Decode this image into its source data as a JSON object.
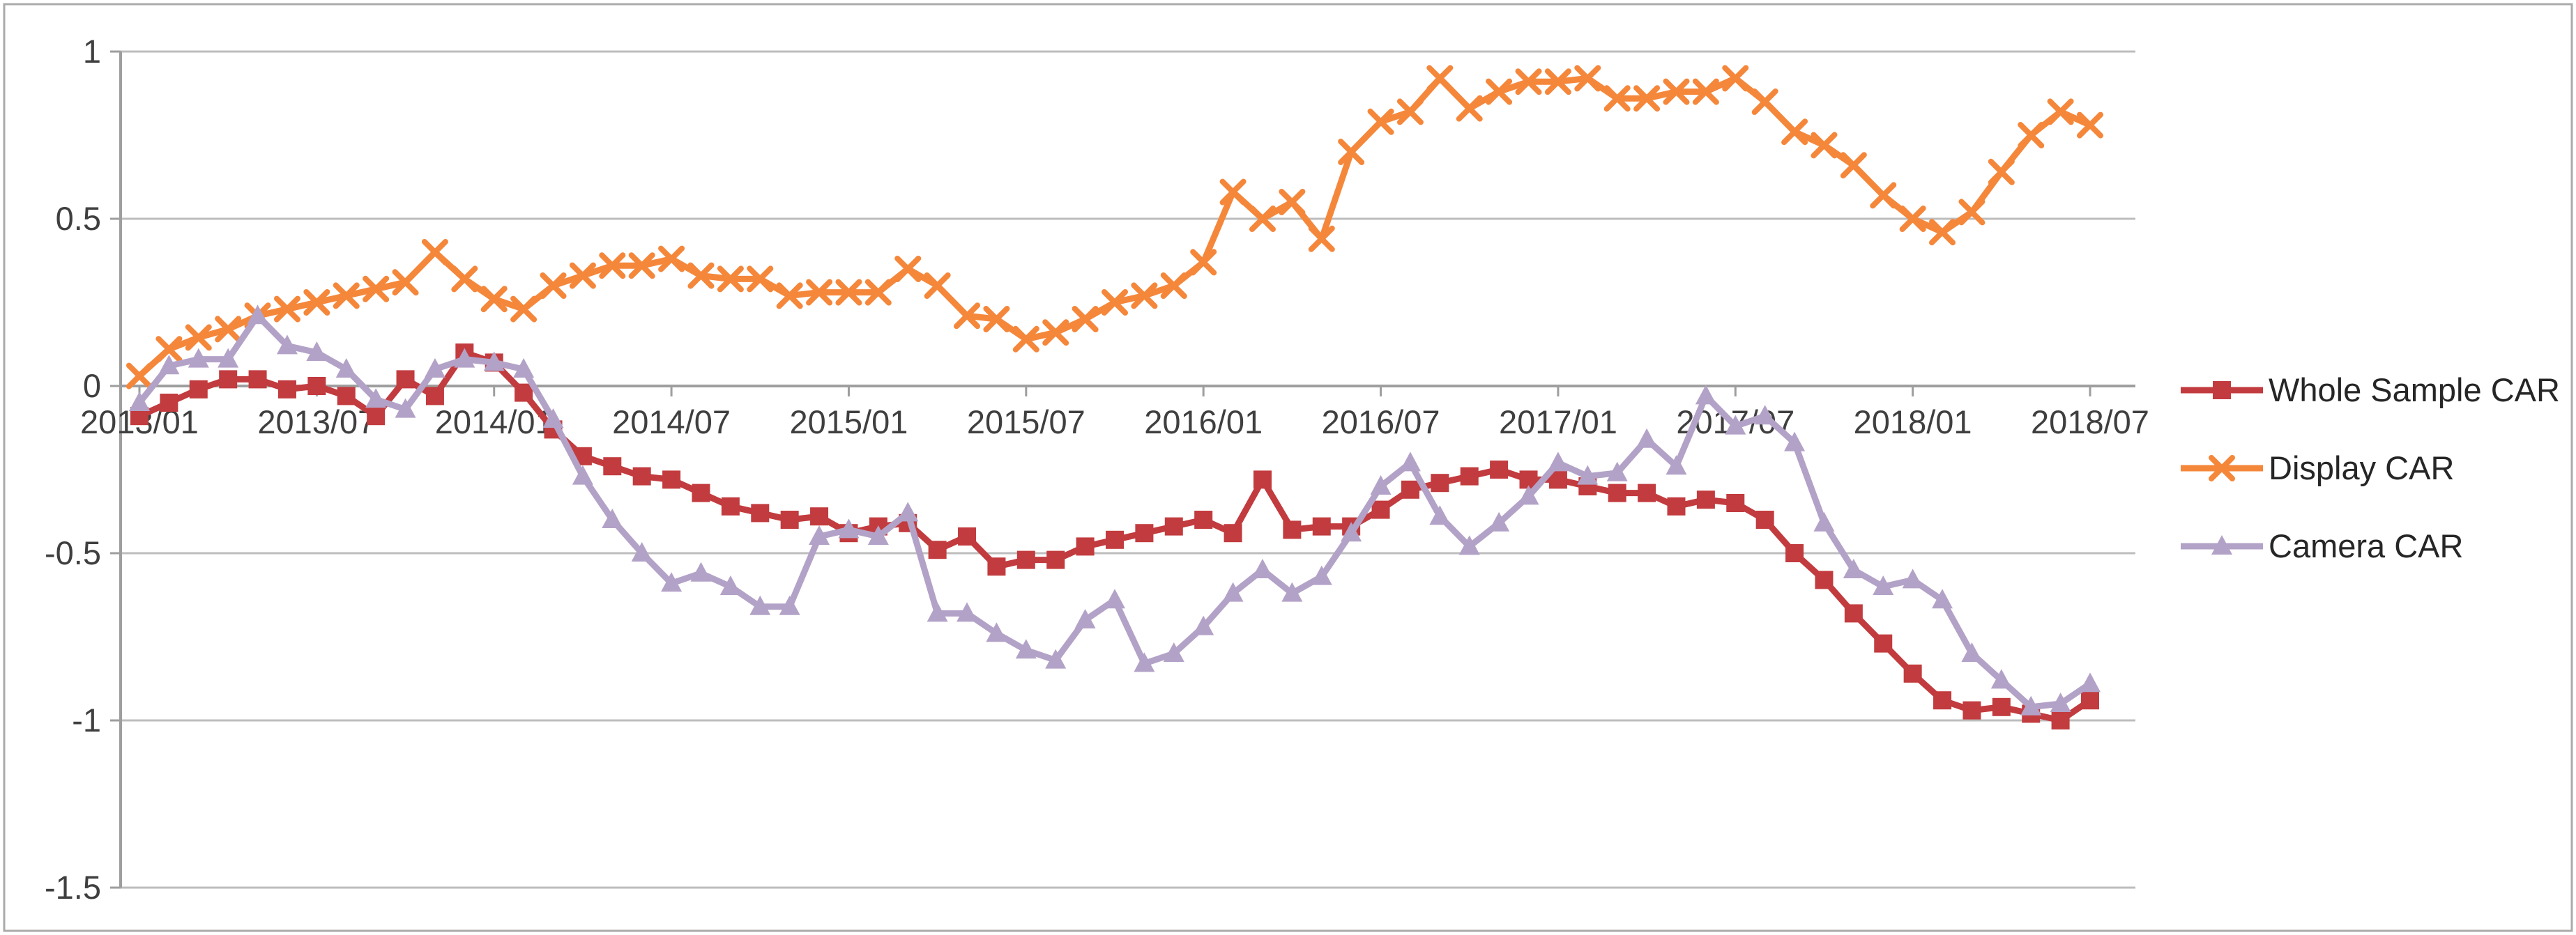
{
  "chart_data": {
    "type": "line",
    "title": "",
    "xlabel": "",
    "ylabel": "",
    "ylim": [
      -1.5,
      1
    ],
    "grid": "horizontal",
    "legend_position": "right",
    "n_points": 67,
    "x_start": "2013/01",
    "x_tick_interval_months": 6,
    "x_tick_labels": [
      "2013/01",
      "2013/07",
      "2014/01",
      "2014/07",
      "2015/01",
      "2015/07",
      "2016/01",
      "2016/07",
      "2017/01",
      "2017/07",
      "2018/01",
      "2018/07"
    ],
    "y_ticks": [
      {
        "label": "1",
        "value": 1
      },
      {
        "label": "0.5",
        "value": 0.5
      },
      {
        "label": "0",
        "value": 0
      },
      {
        "label": "-0.5",
        "value": -0.5
      },
      {
        "label": "-1",
        "value": -1
      },
      {
        "label": "-1.5",
        "value": -1.5
      }
    ],
    "series": [
      {
        "name": "Whole Sample CAR",
        "color": "#c23b3e",
        "marker": "square",
        "values": [
          -0.09,
          -0.05,
          -0.01,
          0.02,
          0.02,
          -0.01,
          0.0,
          -0.03,
          -0.09,
          0.02,
          -0.03,
          0.1,
          0.07,
          -0.02,
          -0.13,
          -0.21,
          -0.24,
          -0.27,
          -0.28,
          -0.32,
          -0.36,
          -0.38,
          -0.4,
          -0.39,
          -0.44,
          -0.42,
          -0.41,
          -0.49,
          -0.45,
          -0.54,
          -0.52,
          -0.52,
          -0.48,
          -0.46,
          -0.44,
          -0.42,
          -0.4,
          -0.44,
          -0.28,
          -0.43,
          -0.42,
          -0.42,
          -0.37,
          -0.31,
          -0.29,
          -0.27,
          -0.25,
          -0.28,
          -0.28,
          -0.3,
          -0.32,
          -0.32,
          -0.36,
          -0.34,
          -0.35,
          -0.4,
          -0.5,
          -0.58,
          -0.68,
          -0.77,
          -0.86,
          -0.94,
          -0.97,
          -0.96,
          -0.98,
          -1.0,
          -0.94
        ]
      },
      {
        "name": "Display CAR",
        "color": "#f5873b",
        "marker": "x",
        "values": [
          0.03,
          0.11,
          0.145,
          0.17,
          0.21,
          0.23,
          0.25,
          0.27,
          0.29,
          0.31,
          0.4,
          0.32,
          0.26,
          0.23,
          0.3,
          0.33,
          0.36,
          0.36,
          0.38,
          0.33,
          0.32,
          0.32,
          0.27,
          0.28,
          0.28,
          0.28,
          0.35,
          0.3,
          0.21,
          0.2,
          0.14,
          0.16,
          0.2,
          0.25,
          0.27,
          0.3,
          0.37,
          0.58,
          0.5,
          0.55,
          0.44,
          0.7,
          0.79,
          0.82,
          0.92,
          0.83,
          0.88,
          0.91,
          0.91,
          0.92,
          0.86,
          0.86,
          0.88,
          0.88,
          0.92,
          0.85,
          0.76,
          0.72,
          0.66,
          0.57,
          0.5,
          0.46,
          0.52,
          0.64,
          0.75,
          0.82,
          0.78
        ]
      },
      {
        "name": "Camera CAR",
        "color": "#b3a2c7",
        "marker": "triangle-up",
        "values": [
          -0.05,
          0.06,
          0.08,
          0.08,
          0.21,
          0.12,
          0.1,
          0.05,
          -0.04,
          -0.07,
          0.05,
          0.08,
          0.07,
          0.05,
          -0.1,
          -0.27,
          -0.4,
          -0.5,
          -0.59,
          -0.56,
          -0.6,
          -0.66,
          -0.66,
          -0.45,
          -0.43,
          -0.45,
          -0.38,
          -0.68,
          -0.68,
          -0.74,
          -0.79,
          -0.82,
          -0.7,
          -0.64,
          -0.83,
          -0.8,
          -0.72,
          -0.62,
          -0.55,
          -0.62,
          -0.57,
          -0.44,
          -0.3,
          -0.23,
          -0.39,
          -0.48,
          -0.41,
          -0.33,
          -0.23,
          -0.27,
          -0.26,
          -0.16,
          -0.24,
          -0.03,
          -0.12,
          -0.09,
          -0.17,
          -0.41,
          -0.55,
          -0.6,
          -0.58,
          -0.64,
          -0.8,
          -0.88,
          -0.96,
          -0.95,
          -0.89
        ]
      }
    ],
    "styles": {
      "background": "#ffffff",
      "border_color": "#ababab",
      "gridline_color": "#bdbdbd",
      "axis_color": "#9e9e9e",
      "text_color": "#3f3f3f"
    }
  }
}
